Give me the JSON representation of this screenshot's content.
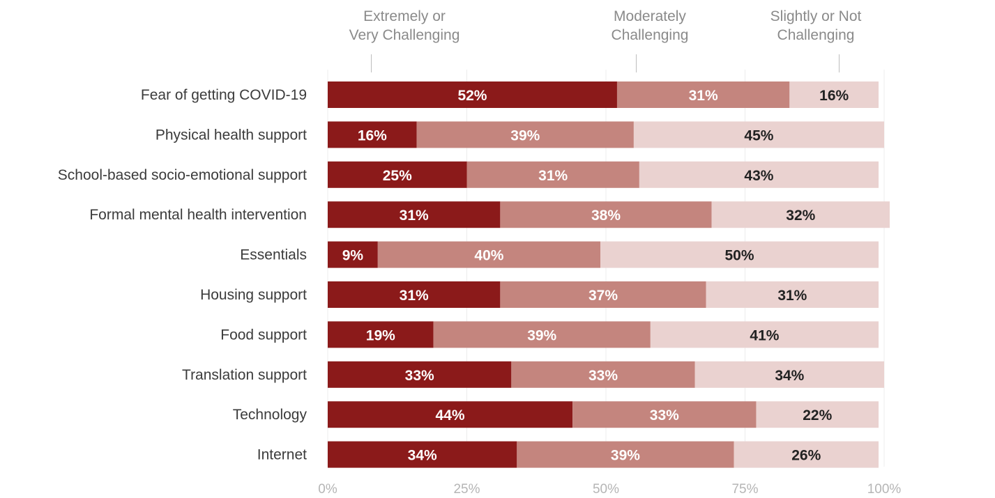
{
  "chart_data": {
    "type": "bar",
    "orientation": "horizontal",
    "stacked": true,
    "categories": [
      "Fear of getting COVID-19",
      "Physical health support",
      "School-based socio-emotional support",
      "Formal mental health intervention",
      "Essentials",
      "Housing support",
      "Food support",
      "Translation support",
      "Technology",
      "Internet"
    ],
    "series": [
      {
        "name": "Extremely or\nVery Challenging",
        "color": "#8b1a1a",
        "values": [
          52,
          16,
          25,
          31,
          9,
          31,
          19,
          33,
          44,
          34
        ]
      },
      {
        "name": "Moderately\nChallenging",
        "color": "#c4857e",
        "values": [
          31,
          39,
          31,
          38,
          40,
          37,
          39,
          33,
          33,
          39
        ]
      },
      {
        "name": "Slightly or Not\nChallenging",
        "color": "#ead2d0",
        "values": [
          16,
          45,
          43,
          32,
          50,
          31,
          41,
          34,
          22,
          26
        ]
      }
    ],
    "value_labels": [
      [
        "52%",
        "16%",
        "25%",
        "31%",
        "9%",
        "31%",
        "19%",
        "33%",
        "44%",
        "34%"
      ],
      [
        "31%",
        "39%",
        "31%",
        "38%",
        "40%",
        "37%",
        "39%",
        "33%",
        "33%",
        "39%"
      ],
      [
        "16%",
        "45%",
        "43%",
        "32%",
        "50%",
        "31%",
        "41%",
        "34%",
        "22%",
        "26%"
      ]
    ],
    "label_colors": [
      "#ffffff",
      "#ffffff",
      "#222222"
    ],
    "xticks": [
      "0%",
      "25%",
      "50%",
      "75%",
      "100%"
    ],
    "xlim": [
      0,
      100
    ],
    "grid": true,
    "legend": "top"
  }
}
